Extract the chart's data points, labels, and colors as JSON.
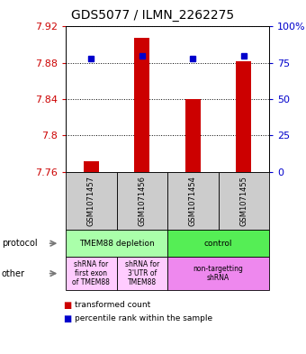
{
  "title": "GDS5077 / ILMN_2262275",
  "samples": [
    "GSM1071457",
    "GSM1071456",
    "GSM1071454",
    "GSM1071455"
  ],
  "bar_values": [
    7.772,
    7.908,
    7.84,
    7.882
  ],
  "bar_base": 7.76,
  "percentile_values": [
    78,
    80,
    78,
    80
  ],
  "ylim_min": 7.76,
  "ylim_max": 7.92,
  "yticks": [
    7.76,
    7.8,
    7.84,
    7.88,
    7.92
  ],
  "ytick_labels": [
    "7.76",
    "7.8",
    "7.84",
    "7.88",
    "7.92"
  ],
  "right_yticks": [
    0,
    25,
    50,
    75,
    100
  ],
  "right_ytick_labels": [
    "0",
    "25",
    "50",
    "75",
    "100%"
  ],
  "bar_color": "#cc0000",
  "dot_color": "#0000cc",
  "protocol_row": [
    {
      "label": "TMEM88 depletion",
      "color": "#aaffaa",
      "span": [
        0,
        2
      ]
    },
    {
      "label": "control",
      "color": "#55ee55",
      "span": [
        2,
        4
      ]
    }
  ],
  "other_row": [
    {
      "label": "shRNA for\nfirst exon\nof TMEM88",
      "color": "#ffccff",
      "span": [
        0,
        1
      ]
    },
    {
      "label": "shRNA for\n3'UTR of\nTMEM88",
      "color": "#ffccff",
      "span": [
        1,
        2
      ]
    },
    {
      "label": "non-targetting\nshRNA",
      "color": "#ee88ee",
      "span": [
        2,
        4
      ]
    }
  ],
  "legend_items": [
    {
      "color": "#cc0000",
      "label": "transformed count"
    },
    {
      "color": "#0000cc",
      "label": "percentile rank within the sample"
    }
  ]
}
